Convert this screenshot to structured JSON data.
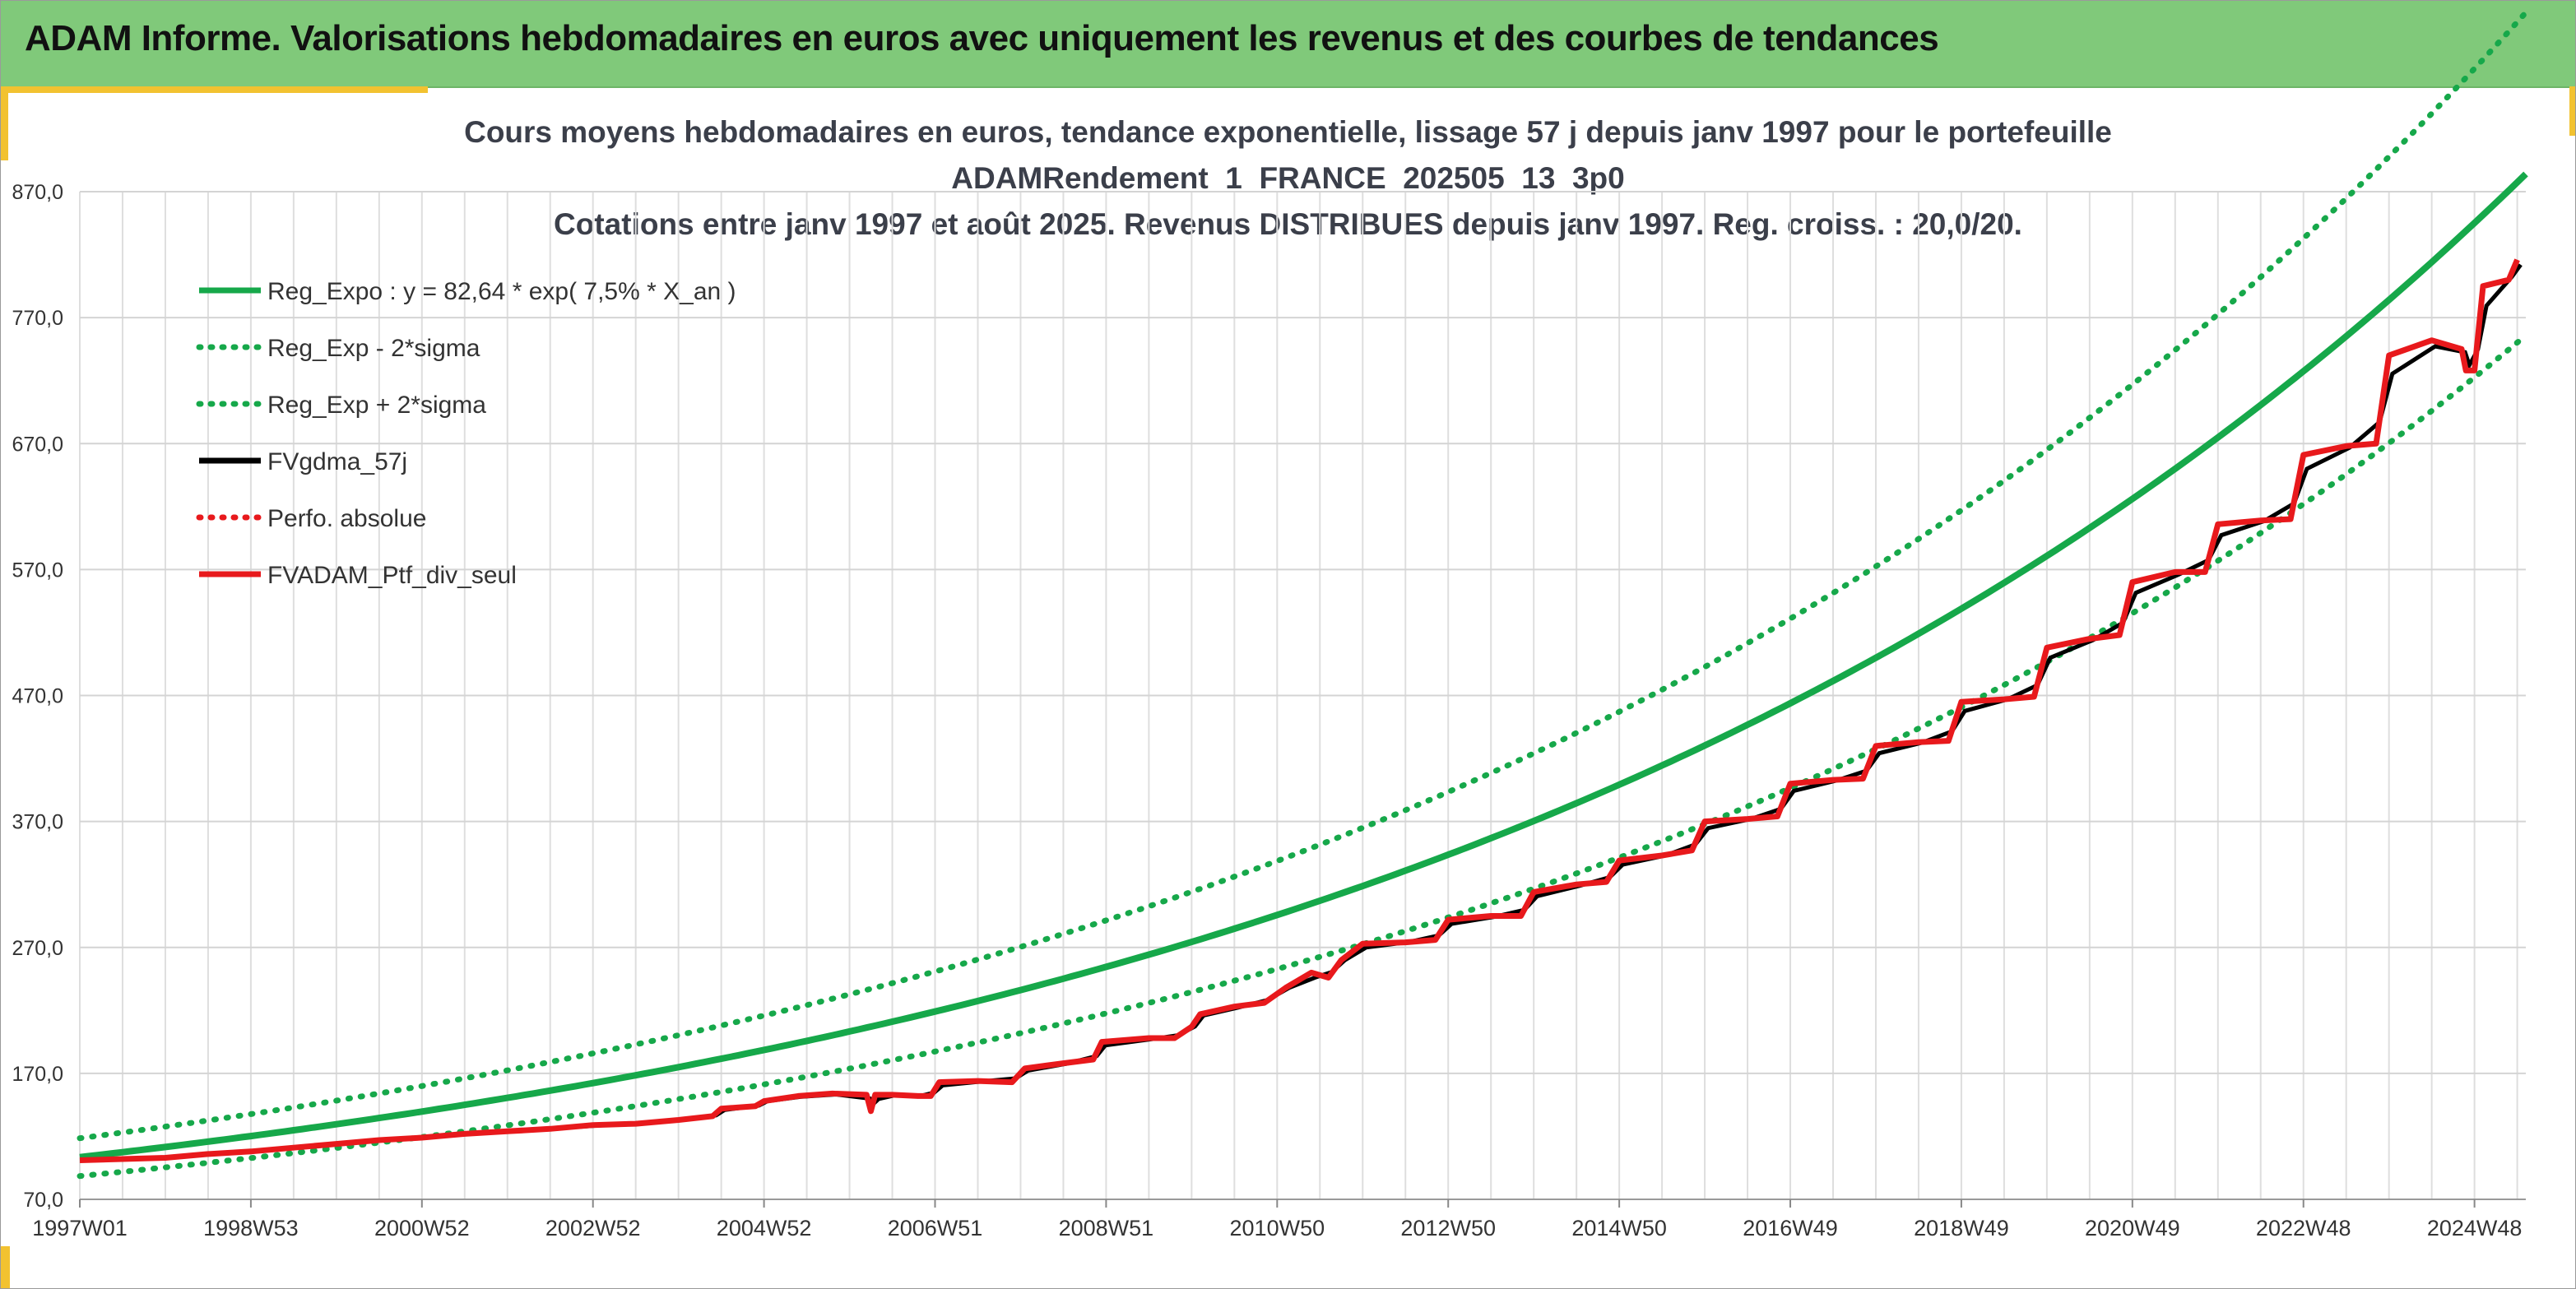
{
  "banner": {
    "title": "ADAM Informe. Valorisations hebdomadaires en euros avec uniquement les revenus et des courbes de tendances"
  },
  "colors": {
    "banner_bg": "#80c97a",
    "accent_yellow": "#f2c230",
    "trend_green": "#16a84a",
    "smooth_black": "#000000",
    "portfolio_red": "#e8191c"
  },
  "chart_data": {
    "type": "line",
    "title_lines": [
      "Cours moyens hebdomadaires en euros, tendance exponentielle, lissage 57 j depuis janv 1997 pour le portefeuille",
      "ADAMRendement_1_FRANCE_202505_13_3p0",
      "Cotations entre janv 1997 et août 2025. Revenus DISTRIBUES depuis janv 1997. Reg. croiss. : 20,0/20."
    ],
    "xlabel": "",
    "ylabel": "",
    "xlim": [
      1997.0,
      2025.6
    ],
    "ylim": [
      70,
      870
    ],
    "y_ticks": [
      70,
      170,
      270,
      370,
      470,
      570,
      670,
      770,
      870
    ],
    "y_tick_labels": [
      "70,0",
      "170,0",
      "270,0",
      "370,0",
      "470,0",
      "570,0",
      "670,0",
      "770,0",
      "870,0"
    ],
    "x_tick_positions": [
      1997.0,
      1999.0,
      2001.0,
      2003.0,
      2005.0,
      2007.0,
      2009.0,
      2011.0,
      2013.0,
      2015.0,
      2017.0,
      2019.0,
      2021.0,
      2023.0,
      2025.0
    ],
    "x_tick_labels": [
      "1997W01",
      "1998W53",
      "2000W52",
      "2002W52",
      "2004W52",
      "2006W51",
      "2008W51",
      "2010W50",
      "2012W50",
      "2014W50",
      "2016W49",
      "2018W49",
      "2020W49",
      "2022W48",
      "2024W48"
    ],
    "grid": true,
    "legend_position": "top-left",
    "regression": {
      "a": 82.64,
      "rate": 0.075,
      "sigma_factor": 0.145
    },
    "legend": [
      {
        "label": "Reg_Expo : y = 82,64 * exp( 7,5% *  X_an )",
        "style": "solid",
        "color": "#16a84a"
      },
      {
        "label": "Reg_Exp - 2*sigma",
        "style": "dotted",
        "color": "#16a84a"
      },
      {
        "label": "Reg_Exp + 2*sigma",
        "style": "dotted",
        "color": "#16a84a"
      },
      {
        "label": "FVgdma_57j",
        "style": "solid",
        "color": "#000000"
      },
      {
        "label": "Perfo. absolue",
        "style": "dotted",
        "color": "#e8191c"
      },
      {
        "label": "FVADAM_Ptf_div_seul",
        "style": "solid",
        "color": "#e8191c"
      }
    ],
    "series": [
      {
        "name": "FVADAM_Ptf_div_seul",
        "points": [
          [
            1997.0,
            101
          ],
          [
            1997.5,
            102
          ],
          [
            1998.0,
            103
          ],
          [
            1998.5,
            106
          ],
          [
            1999.0,
            108
          ],
          [
            1999.5,
            111
          ],
          [
            2000.0,
            114
          ],
          [
            2000.5,
            117
          ],
          [
            2001.0,
            119
          ],
          [
            2001.5,
            122
          ],
          [
            2002.0,
            124
          ],
          [
            2002.5,
            126
          ],
          [
            2003.0,
            129
          ],
          [
            2003.5,
            130
          ],
          [
            2004.0,
            133
          ],
          [
            2004.4,
            136
          ],
          [
            2004.5,
            142
          ],
          [
            2004.9,
            144
          ],
          [
            2005.0,
            148
          ],
          [
            2005.4,
            152
          ],
          [
            2005.8,
            154
          ],
          [
            2006.2,
            153
          ],
          [
            2006.25,
            140
          ],
          [
            2006.3,
            153
          ],
          [
            2006.5,
            153
          ],
          [
            2006.8,
            152
          ],
          [
            2006.95,
            152
          ],
          [
            2007.05,
            163
          ],
          [
            2007.5,
            164
          ],
          [
            2007.9,
            163
          ],
          [
            2008.05,
            174
          ],
          [
            2008.5,
            178
          ],
          [
            2008.85,
            181
          ],
          [
            2008.95,
            195
          ],
          [
            2009.5,
            198
          ],
          [
            2009.8,
            198
          ],
          [
            2010.0,
            207
          ],
          [
            2010.1,
            217
          ],
          [
            2010.5,
            223
          ],
          [
            2010.85,
            226
          ],
          [
            2011.1,
            238
          ],
          [
            2011.4,
            250
          ],
          [
            2011.6,
            246
          ],
          [
            2011.75,
            260
          ],
          [
            2012.0,
            273
          ],
          [
            2012.5,
            274
          ],
          [
            2012.85,
            276
          ],
          [
            2013.0,
            292
          ],
          [
            2013.5,
            295
          ],
          [
            2013.85,
            295
          ],
          [
            2014.0,
            314
          ],
          [
            2014.5,
            320
          ],
          [
            2014.85,
            322
          ],
          [
            2015.0,
            339
          ],
          [
            2015.5,
            343
          ],
          [
            2015.85,
            347
          ],
          [
            2016.0,
            370
          ],
          [
            2016.5,
            372
          ],
          [
            2016.85,
            374
          ],
          [
            2017.0,
            400
          ],
          [
            2017.5,
            403
          ],
          [
            2017.85,
            404
          ],
          [
            2018.0,
            430
          ],
          [
            2018.5,
            433
          ],
          [
            2018.85,
            434
          ],
          [
            2019.0,
            465
          ],
          [
            2019.5,
            467
          ],
          [
            2019.85,
            469
          ],
          [
            2020.0,
            508
          ],
          [
            2020.5,
            515
          ],
          [
            2020.85,
            518
          ],
          [
            2021.0,
            560
          ],
          [
            2021.5,
            568
          ],
          [
            2021.85,
            568
          ],
          [
            2022.0,
            606
          ],
          [
            2022.5,
            609
          ],
          [
            2022.85,
            610
          ],
          [
            2023.0,
            661
          ],
          [
            2023.5,
            668
          ],
          [
            2023.85,
            670
          ],
          [
            2024.0,
            740
          ],
          [
            2024.5,
            752
          ],
          [
            2024.85,
            745
          ],
          [
            2024.9,
            728
          ],
          [
            2025.0,
            728
          ],
          [
            2025.1,
            795
          ],
          [
            2025.4,
            800
          ],
          [
            2025.5,
            816
          ]
        ]
      }
    ]
  }
}
